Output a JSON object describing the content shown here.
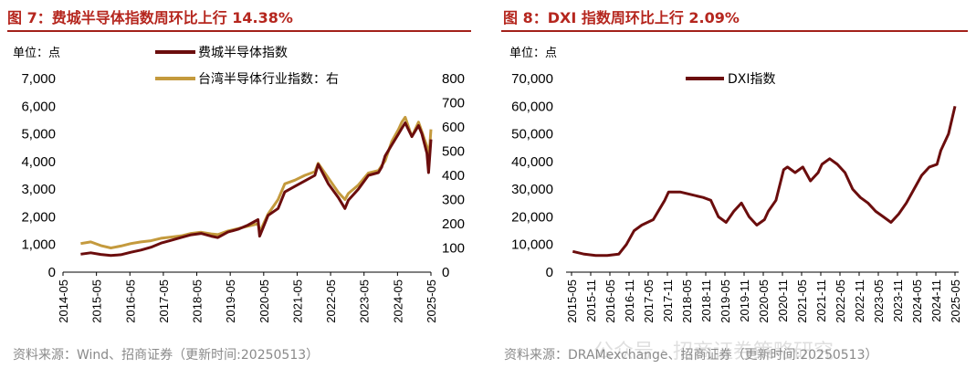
{
  "left": {
    "title": "图 7：费城半导体指数周环比上行 14.38%",
    "unit": "单位：点",
    "source": "资料来源：Wind、招商证券（更新时间:20250513）",
    "chart_data": {
      "type": "line",
      "x_ticks": [
        "2014-05",
        "2015-05",
        "2016-05",
        "2017-05",
        "2018-05",
        "2019-05",
        "2020-05",
        "2021-05",
        "2022-05",
        "2023-05",
        "2024-05",
        "2025-05"
      ],
      "y_left": {
        "ylim": [
          0,
          7000
        ],
        "ticks": [
          "0",
          "1,000",
          "2,000",
          "3,000",
          "4,000",
          "5,000",
          "6,000",
          "7,000"
        ]
      },
      "y_right": {
        "ylim": [
          0,
          800
        ],
        "ticks": [
          "0",
          "100",
          "200",
          "300",
          "400",
          "500",
          "600",
          "700",
          "800"
        ]
      },
      "series": [
        {
          "name": "费城半导体指数",
          "color": "#6b0d0d",
          "axis": "left",
          "x": [
            2014.9,
            2015.2,
            2015.5,
            2015.8,
            2016.1,
            2016.4,
            2016.7,
            2017.0,
            2017.3,
            2017.6,
            2017.9,
            2018.2,
            2018.5,
            2018.8,
            2019.0,
            2019.3,
            2019.6,
            2019.9,
            2020.2,
            2020.25,
            2020.5,
            2020.8,
            2021.0,
            2021.3,
            2021.6,
            2021.9,
            2022.0,
            2022.3,
            2022.6,
            2022.8,
            2022.9,
            2023.2,
            2023.5,
            2023.8,
            2023.9,
            2024.0,
            2024.2,
            2024.4,
            2024.5,
            2024.6,
            2024.8,
            2025.0,
            2025.1,
            2025.25,
            2025.3,
            2025.37
          ],
          "y": [
            650,
            700,
            640,
            600,
            630,
            720,
            800,
            900,
            1050,
            1150,
            1250,
            1350,
            1400,
            1300,
            1250,
            1450,
            1550,
            1700,
            1900,
            1300,
            2050,
            2300,
            2900,
            3100,
            3300,
            3500,
            3900,
            3200,
            2700,
            2300,
            2600,
            3000,
            3500,
            3600,
            3800,
            4200,
            4600,
            5000,
            5200,
            5400,
            4900,
            5300,
            5000,
            4300,
            3600,
            4800
          ]
        },
        {
          "name": "台湾半导体行业指数：右",
          "color": "#c49a3d",
          "axis": "right",
          "x": [
            2014.9,
            2015.2,
            2015.5,
            2015.8,
            2016.1,
            2016.4,
            2016.7,
            2017.0,
            2017.3,
            2017.6,
            2017.9,
            2018.2,
            2018.5,
            2018.8,
            2019.0,
            2019.3,
            2019.6,
            2019.9,
            2020.2,
            2020.25,
            2020.5,
            2020.8,
            2021.0,
            2021.3,
            2021.6,
            2021.9,
            2022.0,
            2022.3,
            2022.6,
            2022.8,
            2022.9,
            2023.2,
            2023.5,
            2023.8,
            2023.9,
            2024.0,
            2024.2,
            2024.4,
            2024.5,
            2024.6,
            2024.8,
            2025.0,
            2025.1,
            2025.25,
            2025.3,
            2025.37
          ],
          "y": [
            118,
            125,
            110,
            100,
            108,
            118,
            125,
            130,
            140,
            145,
            150,
            160,
            165,
            158,
            155,
            170,
            180,
            190,
            200,
            165,
            240,
            300,
            365,
            380,
            400,
            415,
            450,
            390,
            330,
            300,
            325,
            360,
            410,
            420,
            440,
            460,
            540,
            590,
            620,
            640,
            560,
            620,
            580,
            520,
            450,
            590
          ]
        }
      ]
    }
  },
  "right": {
    "title": "图 8：DXI 指数周环比上行 2.09%",
    "unit": "单位：点",
    "source": "资料来源：DRAMexchange、招商证券（更新时间:20250513）",
    "watermark": "公众号 · 招商证券策略研究",
    "chart_data": {
      "type": "line",
      "x_ticks": [
        "2015-05",
        "2015-11",
        "2016-05",
        "2016-11",
        "2017-05",
        "2017-11",
        "2018-05",
        "2018-11",
        "2019-05",
        "2019-11",
        "2020-05",
        "2020-11",
        "2021-05",
        "2021-11",
        "2022-05",
        "2022-11",
        "2023-05",
        "2023-11",
        "2024-05",
        "2024-11",
        "2025-05"
      ],
      "ylim": [
        0,
        70000
      ],
      "y_ticks": [
        "0",
        "10,000",
        "20,000",
        "30,000",
        "40,000",
        "50,000",
        "60,000",
        "70,000"
      ],
      "series": [
        {
          "name": "DXI指数",
          "color": "#6b0d0d",
          "x": [
            2015.4,
            2015.7,
            2016.0,
            2016.3,
            2016.6,
            2016.8,
            2017.0,
            2017.2,
            2017.5,
            2017.8,
            2017.9,
            2018.2,
            2018.5,
            2018.8,
            2019.0,
            2019.2,
            2019.4,
            2019.6,
            2019.8,
            2020.0,
            2020.2,
            2020.4,
            2020.5,
            2020.7,
            2020.9,
            2021.0,
            2021.2,
            2021.4,
            2021.6,
            2021.8,
            2021.9,
            2022.1,
            2022.3,
            2022.5,
            2022.7,
            2022.9,
            2023.1,
            2023.3,
            2023.5,
            2023.7,
            2023.9,
            2024.1,
            2024.3,
            2024.5,
            2024.7,
            2024.9,
            2025.0,
            2025.2,
            2025.37
          ],
          "y": [
            7500,
            6500,
            6000,
            6000,
            6500,
            10000,
            15000,
            17000,
            19000,
            26000,
            29000,
            29000,
            28000,
            27000,
            26000,
            20000,
            18000,
            22000,
            25000,
            20000,
            17000,
            19000,
            22000,
            26000,
            37000,
            38000,
            36000,
            38000,
            33000,
            36000,
            39000,
            41000,
            39000,
            36000,
            30000,
            27000,
            25000,
            22000,
            20000,
            18000,
            21000,
            25000,
            30000,
            35000,
            38000,
            39000,
            44000,
            50000,
            60000
          ]
        }
      ]
    }
  }
}
